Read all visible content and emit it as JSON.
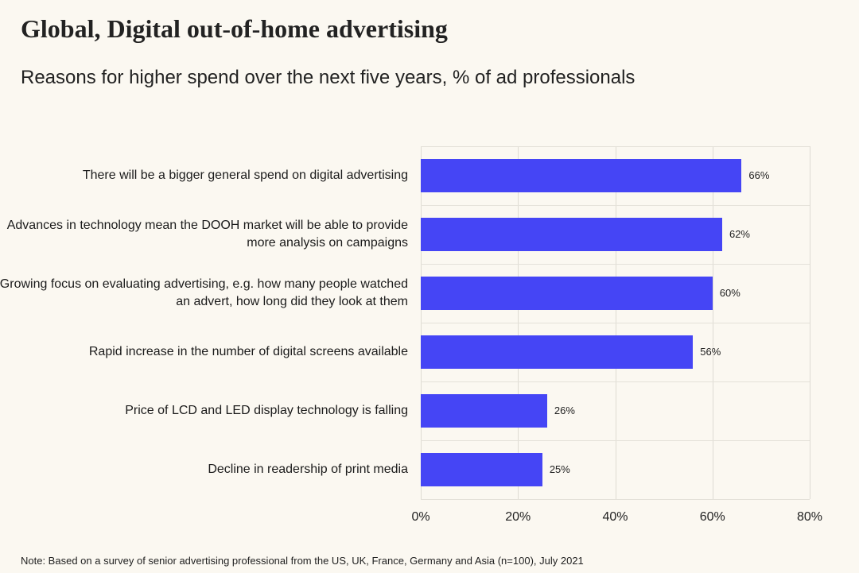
{
  "chart_data": {
    "type": "bar",
    "orientation": "horizontal",
    "title": "Global, Digital out-of-home advertising",
    "subtitle": "Reasons for higher spend over the next five years, % of ad professionals",
    "categories": [
      "There will be a bigger general spend on digital advertising",
      "Advances in technology mean the DOOH market will be able to provide more analysis on campaigns",
      "Growing focus on evaluating advertising, e.g. how many people watched an advert, how long did they look at them",
      "Rapid increase in the number of digital screens available",
      "Price of LCD and LED display technology is falling",
      "Decline in readership of print media"
    ],
    "values": [
      66,
      62,
      60,
      56,
      26,
      25
    ],
    "value_labels": [
      "66%",
      "62%",
      "60%",
      "56%",
      "26%",
      "25%"
    ],
    "xlim": [
      0,
      80
    ],
    "x_ticks": [
      "0%",
      "20%",
      "40%",
      "60%",
      "80%"
    ],
    "grid": true,
    "bar_color": "#4545f5",
    "note": "Note: Based on a survey of senior advertising professional from the US, UK, France, Germany and Asia (n=100), July 2021"
  }
}
